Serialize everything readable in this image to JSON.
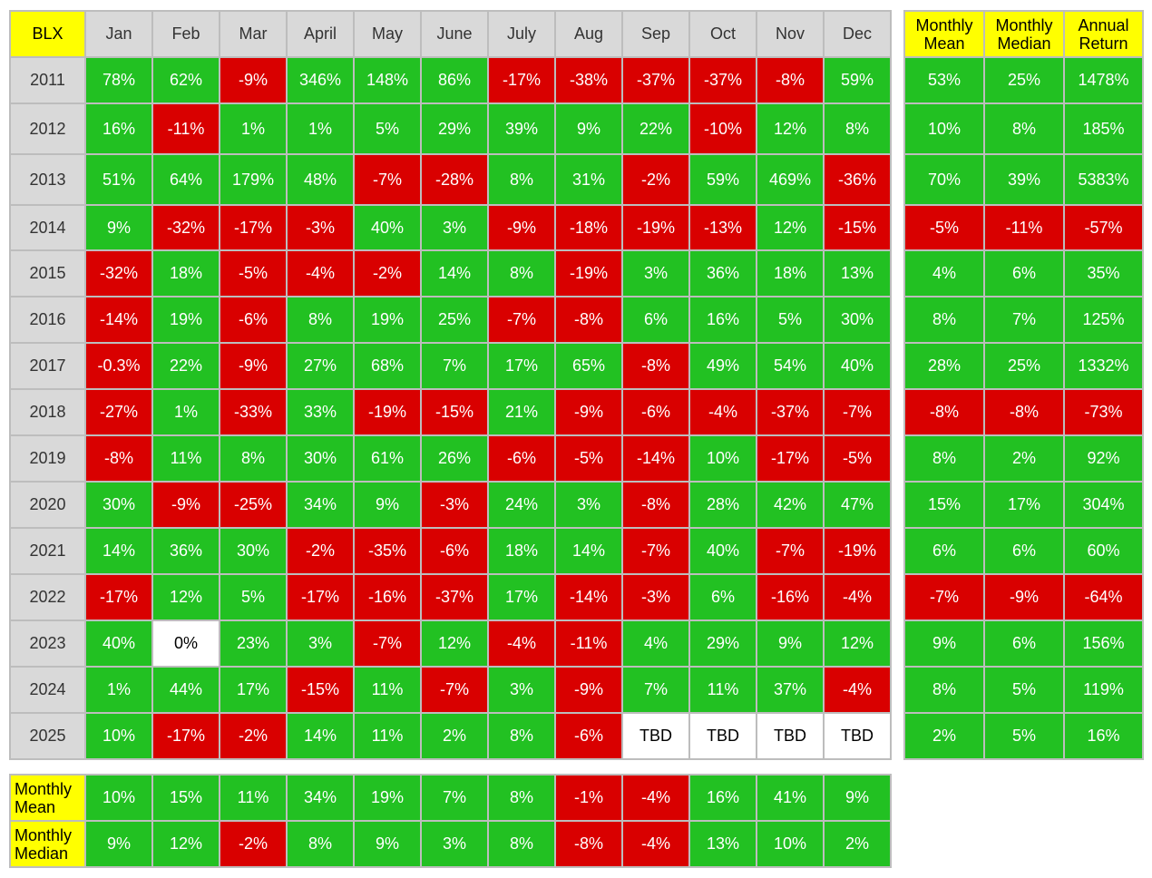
{
  "chart_data": {
    "type": "table",
    "title": "BLX",
    "months": [
      "Jan",
      "Feb",
      "Mar",
      "April",
      "May",
      "June",
      "July",
      "Aug",
      "Sep",
      "Oct",
      "Nov",
      "Dec"
    ],
    "summary_headers": [
      "Monthly Mean",
      "Monthly Median",
      "Annual Return"
    ],
    "rows": [
      {
        "year": "2011",
        "values": [
          "78%",
          "62%",
          "-9%",
          "346%",
          "148%",
          "86%",
          "-17%",
          "-38%",
          "-37%",
          "-37%",
          "-8%",
          "59%"
        ],
        "summary": [
          "53%",
          "25%",
          "1478%"
        ]
      },
      {
        "year": "2012",
        "values": [
          "16%",
          "-11%",
          "1%",
          "1%",
          "5%",
          "29%",
          "39%",
          "9%",
          "22%",
          "-10%",
          "12%",
          "8%"
        ],
        "summary": [
          "10%",
          "8%",
          "185%"
        ]
      },
      {
        "year": "2013",
        "values": [
          "51%",
          "64%",
          "179%",
          "48%",
          "-7%",
          "-28%",
          "8%",
          "31%",
          "-2%",
          "59%",
          "469%",
          "-36%"
        ],
        "summary": [
          "70%",
          "39%",
          "5383%"
        ]
      },
      {
        "year": "2014",
        "values": [
          "9%",
          "-32%",
          "-17%",
          "-3%",
          "40%",
          "3%",
          "-9%",
          "-18%",
          "-19%",
          "-13%",
          "12%",
          "-15%"
        ],
        "summary": [
          "-5%",
          "-11%",
          "-57%"
        ]
      },
      {
        "year": "2015",
        "values": [
          "-32%",
          "18%",
          "-5%",
          "-4%",
          "-2%",
          "14%",
          "8%",
          "-19%",
          "3%",
          "36%",
          "18%",
          "13%"
        ],
        "summary": [
          "4%",
          "6%",
          "35%"
        ]
      },
      {
        "year": "2016",
        "values": [
          "-14%",
          "19%",
          "-6%",
          "8%",
          "19%",
          "25%",
          "-7%",
          "-8%",
          "6%",
          "16%",
          "5%",
          "30%"
        ],
        "summary": [
          "8%",
          "7%",
          "125%"
        ]
      },
      {
        "year": "2017",
        "values": [
          "-0.3%",
          "22%",
          "-9%",
          "27%",
          "68%",
          "7%",
          "17%",
          "65%",
          "-8%",
          "49%",
          "54%",
          "40%"
        ],
        "summary": [
          "28%",
          "25%",
          "1332%"
        ]
      },
      {
        "year": "2018",
        "values": [
          "-27%",
          "1%",
          "-33%",
          "33%",
          "-19%",
          "-15%",
          "21%",
          "-9%",
          "-6%",
          "-4%",
          "-37%",
          "-7%"
        ],
        "summary": [
          "-8%",
          "-8%",
          "-73%"
        ]
      },
      {
        "year": "2019",
        "values": [
          "-8%",
          "11%",
          "8%",
          "30%",
          "61%",
          "26%",
          "-6%",
          "-5%",
          "-14%",
          "10%",
          "-17%",
          "-5%"
        ],
        "summary": [
          "8%",
          "2%",
          "92%"
        ]
      },
      {
        "year": "2020",
        "values": [
          "30%",
          "-9%",
          "-25%",
          "34%",
          "9%",
          "-3%",
          "24%",
          "3%",
          "-8%",
          "28%",
          "42%",
          "47%"
        ],
        "summary": [
          "15%",
          "17%",
          "304%"
        ]
      },
      {
        "year": "2021",
        "values": [
          "14%",
          "36%",
          "30%",
          "-2%",
          "-35%",
          "-6%",
          "18%",
          "14%",
          "-7%",
          "40%",
          "-7%",
          "-19%"
        ],
        "summary": [
          "6%",
          "6%",
          "60%"
        ]
      },
      {
        "year": "2022",
        "values": [
          "-17%",
          "12%",
          "5%",
          "-17%",
          "-16%",
          "-37%",
          "17%",
          "-14%",
          "-3%",
          "6%",
          "-16%",
          "-4%"
        ],
        "summary": [
          "-7%",
          "-9%",
          "-64%"
        ]
      },
      {
        "year": "2023",
        "values": [
          "40%",
          "0%",
          "23%",
          "3%",
          "-7%",
          "12%",
          "-4%",
          "-11%",
          "4%",
          "29%",
          "9%",
          "12%"
        ],
        "summary": [
          "9%",
          "6%",
          "156%"
        ]
      },
      {
        "year": "2024",
        "values": [
          "1%",
          "44%",
          "17%",
          "-15%",
          "11%",
          "-7%",
          "3%",
          "-9%",
          "7%",
          "11%",
          "37%",
          "-4%"
        ],
        "summary": [
          "8%",
          "5%",
          "119%"
        ]
      },
      {
        "year": "2025",
        "values": [
          "10%",
          "-17%",
          "-2%",
          "14%",
          "11%",
          "2%",
          "8%",
          "-6%",
          "TBD",
          "TBD",
          "TBD",
          "TBD"
        ],
        "summary": [
          "2%",
          "5%",
          "16%"
        ]
      }
    ],
    "bottom_rows": [
      {
        "label": "Monthly Mean",
        "values": [
          "10%",
          "15%",
          "11%",
          "34%",
          "19%",
          "7%",
          "8%",
          "-1%",
          "-4%",
          "16%",
          "41%",
          "9%"
        ]
      },
      {
        "label": "Monthly Median",
        "values": [
          "9%",
          "12%",
          "-2%",
          "8%",
          "9%",
          "3%",
          "8%",
          "-8%",
          "-4%",
          "13%",
          "10%",
          "2%"
        ]
      }
    ],
    "colors": {
      "positive": "#22c122",
      "negative": "#d90000",
      "zero": "#ffffff",
      "header_highlight": "#ffff00",
      "header": "#d9d9d9"
    }
  }
}
